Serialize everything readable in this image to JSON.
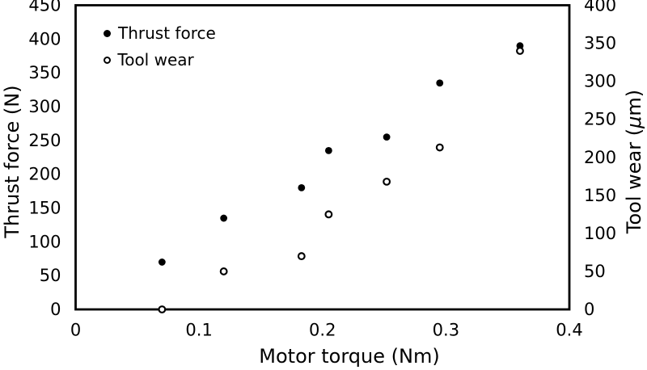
{
  "figure": {
    "background": "#ffffff",
    "ink_color": "#000000"
  },
  "legend": {
    "position": "top-left-inside",
    "items": [
      {
        "label": "Thrust force",
        "marker": "filled-circle"
      },
      {
        "label": "Tool wear",
        "marker": "open-circle"
      }
    ]
  },
  "axes": {
    "x_title": "Motor torque (Nm)",
    "y_left_title": "Thrust force (N)",
    "y_right_title": "Tool wear (μm)",
    "y_right_title_parts": {
      "pre": "Tool wear (",
      "mu": "μ",
      "post": "m)"
    }
  },
  "chart_data": {
    "type": "scatter",
    "title": "",
    "xlabel": "Motor torque (Nm)",
    "ylabel_left": "Thrust force (N)",
    "ylabel_right": "Tool wear (μm)",
    "xlim": [
      0,
      0.4
    ],
    "ylim_left": [
      0,
      450
    ],
    "ylim_right": [
      0,
      400
    ],
    "grid": false,
    "legend_position": "top-left-inside",
    "x": [
      0.07,
      0.12,
      0.183,
      0.205,
      0.252,
      0.295,
      0.36
    ],
    "series": [
      {
        "name": "Thrust force",
        "axis": "left",
        "marker": "filled-circle",
        "color": "#000000",
        "values": [
          70,
          135,
          180,
          235,
          255,
          335,
          390
        ]
      },
      {
        "name": "Tool wear",
        "axis": "right",
        "marker": "open-circle",
        "color": "#000000",
        "values": [
          0,
          50,
          70,
          125,
          168,
          213,
          340
        ]
      }
    ],
    "x_ticks": [
      0,
      0.1,
      0.2,
      0.3,
      0.4
    ],
    "x_tick_labels": [
      "0",
      "0.1",
      "0.2",
      "0.3",
      "0.4"
    ],
    "y_ticks_left": [
      0,
      50,
      100,
      150,
      200,
      250,
      300,
      350,
      400,
      450
    ],
    "y_tick_labels_left": [
      "0",
      "50",
      "100",
      "150",
      "200",
      "250",
      "300",
      "350",
      "400",
      "450"
    ],
    "y_ticks_right": [
      0,
      50,
      100,
      150,
      200,
      250,
      300,
      350,
      400
    ],
    "y_tick_labels_right": [
      "0",
      "50",
      "100",
      "150",
      "200",
      "250",
      "300",
      "350",
      "400"
    ]
  }
}
